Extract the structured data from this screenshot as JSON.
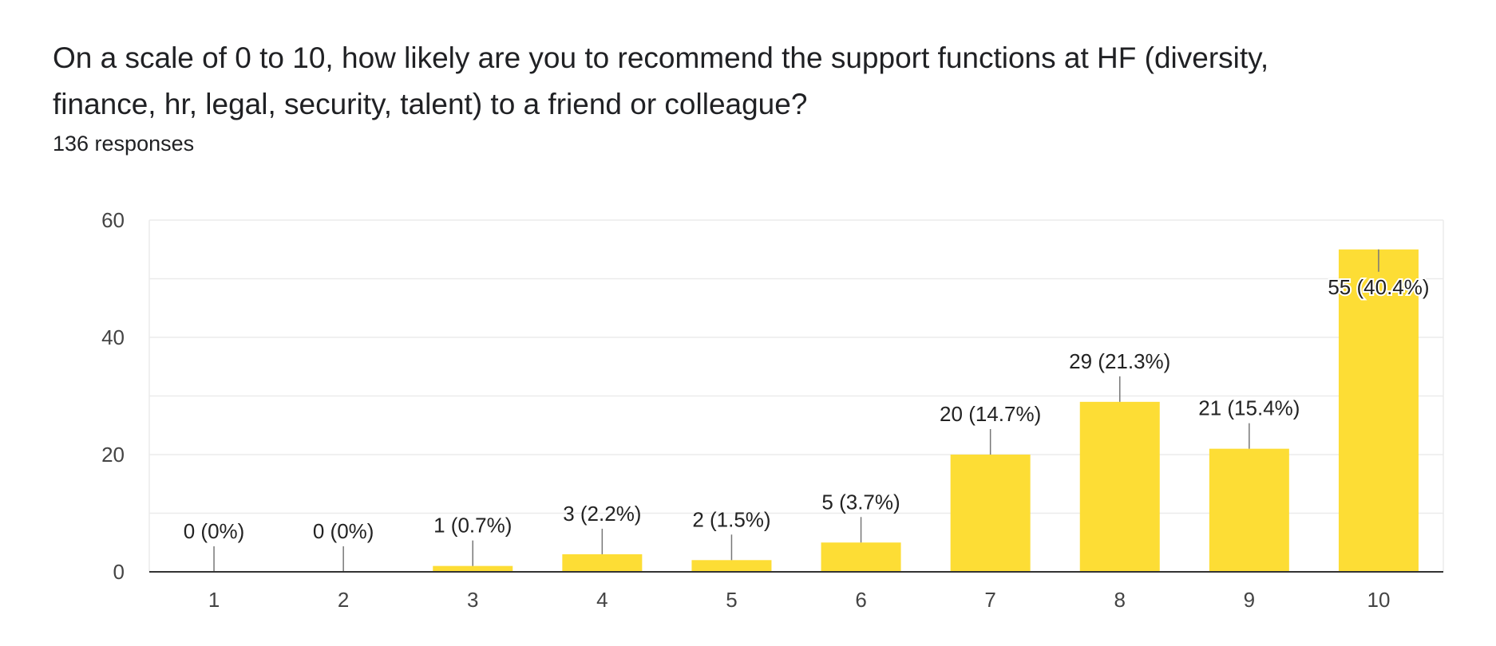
{
  "question": {
    "line1": "On a scale of 0 to 10, how likely are you to recommend the support functions at HF (diversity,",
    "line2": "finance, hr, legal, security, talent) to a friend or colleague?"
  },
  "response_count": "136 responses",
  "colors": {
    "bar": "#FDDD35",
    "gridline": "#ebebeb",
    "axis": "#333333",
    "leader": "#777777"
  },
  "chart_data": {
    "type": "bar",
    "categories": [
      "1",
      "2",
      "3",
      "4",
      "5",
      "6",
      "7",
      "8",
      "9",
      "10"
    ],
    "values": [
      0,
      0,
      1,
      3,
      2,
      5,
      20,
      29,
      21,
      55
    ],
    "data_labels": [
      "0 (0%)",
      "0 (0%)",
      "1 (0.7%)",
      "3 (2.2%)",
      "2 (1.5%)",
      "5 (3.7%)",
      "20 (14.7%)",
      "29 (21.3%)",
      "21 (15.4%)",
      "55 (40.4%)"
    ],
    "y_ticks": [
      0,
      20,
      40,
      60
    ],
    "ylim": [
      0,
      60
    ],
    "grid": true
  }
}
